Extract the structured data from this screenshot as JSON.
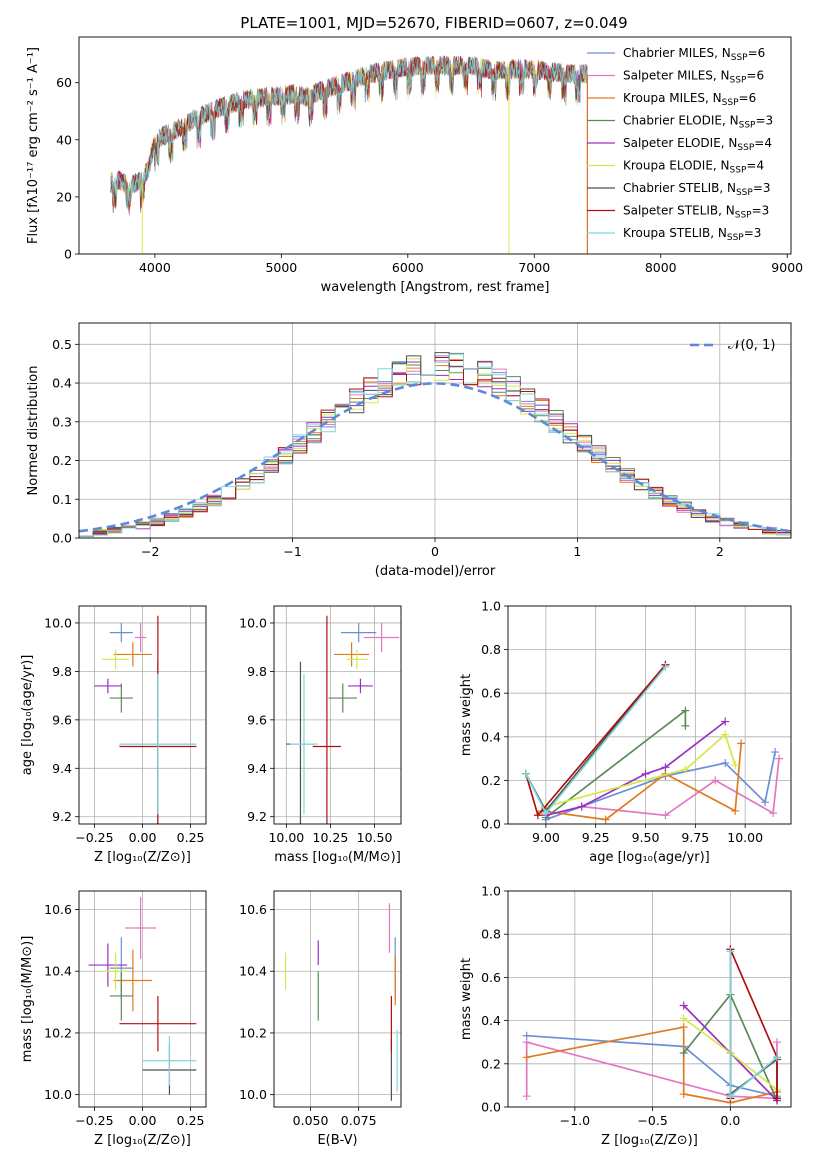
{
  "chart_data": [
    {
      "type": "line",
      "title": "PLATE=1001, MJD=52670, FIBERID=0607, z=0.049",
      "xlabel": "wavelength [Angstrom, rest frame]",
      "ylabel": "Flux [fλ10⁻¹⁷ erg cm⁻² s⁻¹ A⁻¹]",
      "xlim": [
        3400,
        9030
      ],
      "ylim": [
        0,
        76
      ],
      "xticks": [
        "4000",
        "5000",
        "6000",
        "7000",
        "8000",
        "9000"
      ],
      "xtick_values": [
        4000,
        5000,
        6000,
        7000,
        8000,
        9000
      ],
      "yticks": [
        "0",
        "20",
        "40",
        "60"
      ],
      "ytick_values": [
        0,
        20,
        40,
        60
      ],
      "legend_position": "upper right",
      "spectrum_range": [
        3650,
        7420
      ],
      "spectrum_profile": [
        [
          3650,
          25
        ],
        [
          3700,
          26
        ],
        [
          3800,
          24
        ],
        [
          3900,
          26
        ],
        [
          3950,
          30
        ],
        [
          4000,
          40
        ],
        [
          4100,
          42
        ],
        [
          4200,
          44
        ],
        [
          4300,
          47
        ],
        [
          4400,
          49
        ],
        [
          4500,
          51
        ],
        [
          4700,
          54
        ],
        [
          4900,
          55
        ],
        [
          5100,
          56
        ],
        [
          5200,
          55
        ],
        [
          5300,
          57
        ],
        [
          5500,
          60
        ],
        [
          5700,
          63
        ],
        [
          5900,
          65
        ],
        [
          6100,
          66
        ],
        [
          6300,
          66
        ],
        [
          6500,
          66
        ],
        [
          6700,
          64
        ],
        [
          6900,
          65
        ],
        [
          7100,
          64
        ],
        [
          7300,
          63
        ],
        [
          7420,
          63
        ]
      ],
      "series": [
        {
          "name": "Chabrier MILES, N_SSP=6",
          "label": "Chabrier MILES, N",
          "sub": "SSP",
          "val": "=6",
          "color": "#6b8fd8"
        },
        {
          "name": "Salpeter MILES, N_SSP=6",
          "label": "Salpeter MILES, N",
          "sub": "SSP",
          "val": "=6",
          "color": "#e377c2"
        },
        {
          "name": "Kroupa MILES, N_SSP=6",
          "label": "Kroupa MILES, N",
          "sub": "SSP",
          "val": "=6",
          "color": "#e07b20"
        },
        {
          "name": "Chabrier ELODIE, N_SSP=3",
          "label": "Chabrier ELODIE, N",
          "sub": "SSP",
          "val": "=3",
          "color": "#5a8a5a"
        },
        {
          "name": "Salpeter ELODIE, N_SSP=4",
          "label": "Salpeter ELODIE, N",
          "sub": "SSP",
          "val": "=4",
          "color": "#9b30c0"
        },
        {
          "name": "Kroupa ELODIE, N_SSP=4",
          "label": "Kroupa ELODIE, N",
          "sub": "SSP",
          "val": "=4",
          "color": "#d4e84a"
        },
        {
          "name": "Chabrier STELIB, N_SSP=3",
          "label": "Chabrier STELIB, N",
          "sub": "SSP",
          "val": "=3",
          "color": "#505050"
        },
        {
          "name": "Salpeter STELIB, N_SSP=3",
          "label": "Salpeter STELIB, N",
          "sub": "SSP",
          "val": "=3",
          "color": "#b01010"
        },
        {
          "name": "Kroupa STELIB, N_SSP=3",
          "label": "Kroupa STELIB, N",
          "sub": "SSP",
          "val": "=3",
          "color": "#7ed6dd"
        }
      ],
      "drop_lines": [
        {
          "x": 3900,
          "color": "#d4e84a"
        },
        {
          "x": 6800,
          "color": "#d4e84a"
        },
        {
          "x": 7420,
          "color": "#b01010"
        },
        {
          "x": 7420,
          "color": "#e07b20"
        }
      ]
    },
    {
      "type": "histogram",
      "xlabel": "(data-model)/error",
      "ylabel": "Normed distribution",
      "xlim": [
        -2.5,
        2.5
      ],
      "ylim": [
        0,
        0.555
      ],
      "xticks": [
        "−2",
        "−1",
        "0",
        "1",
        "2"
      ],
      "xtick_values": [
        -2,
        -1,
        0,
        1,
        2
      ],
      "yticks": [
        "0.0",
        "0.1",
        "0.2",
        "0.3",
        "0.4",
        "0.5"
      ],
      "ytick_values": [
        0,
        0.1,
        0.2,
        0.3,
        0.4,
        0.5
      ],
      "grid": true,
      "legend": "𝒩(0, 1)",
      "legend_position": "upper right",
      "reference_curve": {
        "name": "𝒩(0, 1)",
        "type": "gaussian",
        "mean": 0,
        "sigma": 1,
        "color": "#5b8bd8",
        "style": "dashed"
      },
      "bin_width": 0.1,
      "profile_peak": 0.44,
      "profile_center": 0.05,
      "profile_sigma": 0.92,
      "series_colors": [
        "#6b8fd8",
        "#e377c2",
        "#e07b20",
        "#5a8a5a",
        "#9b30c0",
        "#d4e84a",
        "#505050",
        "#b01010",
        "#7ed6dd"
      ]
    },
    {
      "type": "scatter",
      "xlabel": "Z [log₁₀(Z/Z⊙)]",
      "ylabel": "age  [log₁₀(age/yr)]",
      "xlim": [
        -0.33,
        0.33
      ],
      "ylim": [
        9.17,
        10.07
      ],
      "xticks": [
        "−0.25",
        "0.00",
        "0.25"
      ],
      "xtick_values": [
        -0.25,
        0,
        0.25
      ],
      "yticks": [
        "9.2",
        "9.4",
        "9.6",
        "9.8",
        "10.0"
      ],
      "ytick_values": [
        9.2,
        9.4,
        9.6,
        9.8,
        10.0
      ],
      "grid": true,
      "points": [
        {
          "x": -0.11,
          "y": 9.96,
          "xerr": 0.06,
          "yerr": 0.04,
          "color": "#6b8fd8"
        },
        {
          "x": -0.01,
          "y": 9.94,
          "xerr": 0.03,
          "yerr": 0.06,
          "color": "#e377c2"
        },
        {
          "x": -0.05,
          "y": 9.87,
          "xerr": 0.1,
          "yerr": 0.05,
          "color": "#e07b20"
        },
        {
          "x": -0.11,
          "y": 9.69,
          "xerr": 0.06,
          "yerr": 0.06,
          "color": "#5a8a5a"
        },
        {
          "x": -0.18,
          "y": 9.74,
          "xerr": 0.07,
          "yerr": 0.03,
          "color": "#9b30c0"
        },
        {
          "x": -0.14,
          "y": 9.85,
          "xerr": 0.07,
          "yerr": 0.04,
          "color": "#d4e84a"
        },
        {
          "x": 0.08,
          "y": 9.5,
          "xerr": 0.2,
          "yerr": 0.34,
          "color": "#505050"
        },
        {
          "x": 0.08,
          "y": 9.49,
          "xerr": 0.2,
          "yerr": 0.54,
          "color": "#b01010"
        },
        {
          "x": 0.08,
          "y": 9.5,
          "xerr": 0.2,
          "yerr": 0.29,
          "color": "#7ed6dd"
        }
      ]
    },
    {
      "type": "scatter",
      "xlabel": "mass [log₁₀(M/M⊙)]",
      "ylabel": "",
      "xlim": [
        9.93,
        10.65
      ],
      "ylim": [
        9.17,
        10.07
      ],
      "xticks": [
        "10.00",
        "10.25",
        "10.50"
      ],
      "xtick_values": [
        10,
        10.25,
        10.5
      ],
      "yticks": [
        "9.2",
        "9.4",
        "9.6",
        "9.8",
        "10.0"
      ],
      "ytick_values": [
        9.2,
        9.4,
        9.6,
        9.8,
        10.0
      ],
      "grid": true,
      "points": [
        {
          "x": 10.41,
          "y": 9.96,
          "xerr": 0.1,
          "yerr": 0.04,
          "color": "#6b8fd8"
        },
        {
          "x": 10.54,
          "y": 9.94,
          "xerr": 0.1,
          "yerr": 0.06,
          "color": "#e377c2"
        },
        {
          "x": 10.37,
          "y": 9.87,
          "xerr": 0.1,
          "yerr": 0.05,
          "color": "#e07b20"
        },
        {
          "x": 10.32,
          "y": 9.69,
          "xerr": 0.08,
          "yerr": 0.06,
          "color": "#5a8a5a"
        },
        {
          "x": 10.42,
          "y": 9.74,
          "xerr": 0.07,
          "yerr": 0.03,
          "color": "#9b30c0"
        },
        {
          "x": 10.4,
          "y": 9.85,
          "xerr": 0.06,
          "yerr": 0.04,
          "color": "#d4e84a"
        },
        {
          "x": 10.08,
          "y": 9.5,
          "xerr": 0.08,
          "yerr": 0.34,
          "color": "#505050"
        },
        {
          "x": 10.23,
          "y": 9.49,
          "xerr": 0.08,
          "yerr": 0.54,
          "color": "#b01010"
        },
        {
          "x": 10.1,
          "y": 9.5,
          "xerr": 0.08,
          "yerr": 0.29,
          "color": "#7ed6dd"
        }
      ]
    },
    {
      "type": "line",
      "xlabel": "age  [log₁₀(age/yr)]",
      "ylabel": "mass weight",
      "xlim": [
        8.81,
        10.23
      ],
      "ylim": [
        0,
        1
      ],
      "xticks": [
        "9.00",
        "9.25",
        "9.50",
        "9.75",
        "10.00"
      ],
      "xtick_values": [
        9,
        9.25,
        9.5,
        9.75,
        10
      ],
      "yticks": [
        "0.0",
        "0.2",
        "0.4",
        "0.6",
        "0.8",
        "1.0"
      ],
      "ytick_values": [
        0,
        0.2,
        0.4,
        0.6,
        0.8,
        1.0
      ],
      "grid": true,
      "series": [
        {
          "color": "#6b8fd8",
          "x": [
            9.0,
            9.6,
            9.9,
            10.1,
            10.15
          ],
          "y": [
            0.02,
            0.22,
            0.28,
            0.1,
            0.33
          ]
        },
        {
          "color": "#e377c2",
          "x": [
            9.18,
            9.6,
            9.85,
            10.14,
            10.17
          ],
          "y": [
            0.08,
            0.04,
            0.2,
            0.05,
            0.3
          ]
        },
        {
          "color": "#e07b20",
          "x": [
            8.98,
            9.3,
            9.6,
            9.95,
            9.98
          ],
          "y": [
            0.06,
            0.02,
            0.23,
            0.06,
            0.37
          ]
        },
        {
          "color": "#5a8a5a",
          "x": [
            9.0,
            9.7,
            9.7
          ],
          "y": [
            0.03,
            0.52,
            0.45
          ]
        },
        {
          "color": "#9b30c0",
          "x": [
            9.0,
            9.18,
            9.5,
            9.6,
            9.9
          ],
          "y": [
            0.04,
            0.08,
            0.23,
            0.26,
            0.47
          ]
        },
        {
          "color": "#d4e84a",
          "x": [
            9.0,
            9.7,
            9.9,
            9.95
          ],
          "y": [
            0.08,
            0.25,
            0.41,
            0.27
          ]
        },
        {
          "color": "#505050",
          "x": [
            8.9,
            9.0,
            9.6
          ],
          "y": [
            0.23,
            0.06,
            0.73
          ]
        },
        {
          "color": "#b01010",
          "x": [
            8.9,
            8.96,
            9.6
          ],
          "y": [
            0.23,
            0.04,
            0.73
          ]
        },
        {
          "color": "#7ed6dd",
          "x": [
            8.9,
            9.0,
            9.6
          ],
          "y": [
            0.23,
            0.05,
            0.72
          ]
        }
      ]
    },
    {
      "type": "scatter",
      "xlabel": "Z [log₁₀(Z/Z⊙)]",
      "ylabel": "mass [log₁₀(M/M⊙)]",
      "xlim": [
        -0.33,
        0.33
      ],
      "ylim": [
        9.96,
        10.66
      ],
      "xticks": [
        "−0.25",
        "0.00",
        "0.25"
      ],
      "xtick_values": [
        -0.25,
        0,
        0.25
      ],
      "yticks": [
        "10.0",
        "10.2",
        "10.4",
        "10.6"
      ],
      "ytick_values": [
        10,
        10.2,
        10.4,
        10.6
      ],
      "grid": true,
      "points": [
        {
          "x": -0.11,
          "y": 10.41,
          "xerr": 0.06,
          "yerr": 0.1,
          "color": "#6b8fd8"
        },
        {
          "x": -0.01,
          "y": 10.54,
          "xerr": 0.08,
          "yerr": 0.1,
          "color": "#e377c2"
        },
        {
          "x": -0.05,
          "y": 10.37,
          "xerr": 0.1,
          "yerr": 0.1,
          "color": "#e07b20"
        },
        {
          "x": -0.11,
          "y": 10.32,
          "xerr": 0.06,
          "yerr": 0.08,
          "color": "#5a8a5a"
        },
        {
          "x": -0.18,
          "y": 10.42,
          "xerr": 0.1,
          "yerr": 0.07,
          "color": "#9b30c0"
        },
        {
          "x": -0.14,
          "y": 10.4,
          "xerr": 0.07,
          "yerr": 0.06,
          "color": "#d4e84a"
        },
        {
          "x": 0.14,
          "y": 10.08,
          "xerr": 0.14,
          "yerr": 0.08,
          "color": "#505050"
        },
        {
          "x": 0.08,
          "y": 10.23,
          "xerr": 0.2,
          "yerr": 0.09,
          "color": "#b01010"
        },
        {
          "x": 0.14,
          "y": 10.11,
          "xerr": 0.14,
          "yerr": 0.08,
          "color": "#7ed6dd"
        }
      ]
    },
    {
      "type": "scatter",
      "xlabel": "E(B-V)",
      "ylabel": "",
      "xlim": [
        0.031,
        0.097
      ],
      "ylim": [
        9.96,
        10.66
      ],
      "xticks": [
        "0.050",
        "0.075"
      ],
      "xtick_values": [
        0.05,
        0.075
      ],
      "yticks": [
        "10.0",
        "10.2",
        "10.4",
        "10.6"
      ],
      "ytick_values": [
        10,
        10.2,
        10.4,
        10.6
      ],
      "grid": true,
      "points": [
        {
          "x": 0.094,
          "y": 10.41,
          "xerr": 0,
          "yerr": 0.1,
          "color": "#6b8fd8"
        },
        {
          "x": 0.091,
          "y": 10.54,
          "xerr": 0,
          "yerr": 0.08,
          "color": "#e377c2"
        },
        {
          "x": 0.094,
          "y": 10.37,
          "xerr": 0,
          "yerr": 0.08,
          "color": "#e07b20"
        },
        {
          "x": 0.054,
          "y": 10.32,
          "xerr": 0,
          "yerr": 0.08,
          "color": "#5a8a5a"
        },
        {
          "x": 0.054,
          "y": 10.46,
          "xerr": 0,
          "yerr": 0.04,
          "color": "#9b30c0"
        },
        {
          "x": 0.037,
          "y": 10.4,
          "xerr": 0,
          "yerr": 0.06,
          "color": "#d4e84a"
        },
        {
          "x": 0.092,
          "y": 10.08,
          "xerr": 0,
          "yerr": 0.1,
          "color": "#505050"
        },
        {
          "x": 0.092,
          "y": 10.23,
          "xerr": 0,
          "yerr": 0.09,
          "color": "#b01010"
        },
        {
          "x": 0.095,
          "y": 10.11,
          "xerr": 0,
          "yerr": 0.1,
          "color": "#7ed6dd"
        }
      ]
    },
    {
      "type": "line",
      "xlabel": "Z [log₁₀(Z/Z⊙)]",
      "ylabel": "mass weight",
      "xlim": [
        -1.43,
        0.39
      ],
      "ylim": [
        0,
        1
      ],
      "xticks": [
        "−1.0",
        "−0.5",
        "0.0"
      ],
      "xtick_values": [
        -1,
        -0.5,
        0
      ],
      "yticks": [
        "0.0",
        "0.2",
        "0.4",
        "0.6",
        "0.8",
        "1.0"
      ],
      "ytick_values": [
        0,
        0.2,
        0.4,
        0.6,
        0.8,
        1.0
      ],
      "grid": true,
      "series": [
        {
          "color": "#6b8fd8",
          "x": [
            -1.31,
            -0.3,
            0,
            0.3
          ],
          "y": [
            0.33,
            0.28,
            0.1,
            0.05
          ]
        },
        {
          "color": "#e377c2",
          "x": [
            -1.31,
            -1.31,
            0,
            0.3,
            0.3
          ],
          "y": [
            0.05,
            0.3,
            0.05,
            0.04,
            0.3
          ]
        },
        {
          "color": "#e07b20",
          "x": [
            -1.31,
            -0.3,
            -0.3,
            0,
            0.3
          ],
          "y": [
            0.23,
            0.37,
            0.06,
            0.02,
            0.07
          ]
        },
        {
          "color": "#5a8a5a",
          "x": [
            -0.3,
            0,
            0.3
          ],
          "y": [
            0.25,
            0.52,
            0.03
          ]
        },
        {
          "color": "#9b30c0",
          "x": [
            -0.3,
            0,
            0.3
          ],
          "y": [
            0.47,
            0.25,
            0.03
          ]
        },
        {
          "color": "#d4e84a",
          "x": [
            -0.3,
            0,
            0.3
          ],
          "y": [
            0.41,
            0.25,
            0.08
          ]
        },
        {
          "color": "#505050",
          "x": [
            0,
            0,
            0.3,
            0.3
          ],
          "y": [
            0.73,
            0.06,
            0.22,
            0.04
          ]
        },
        {
          "color": "#b01010",
          "x": [
            0,
            0,
            0.3,
            0.3
          ],
          "y": [
            0.04,
            0.73,
            0.23,
            0.04
          ]
        },
        {
          "color": "#7ed6dd",
          "x": [
            0,
            0,
            0.3
          ],
          "y": [
            0.72,
            0.05,
            0.23
          ]
        }
      ]
    }
  ]
}
